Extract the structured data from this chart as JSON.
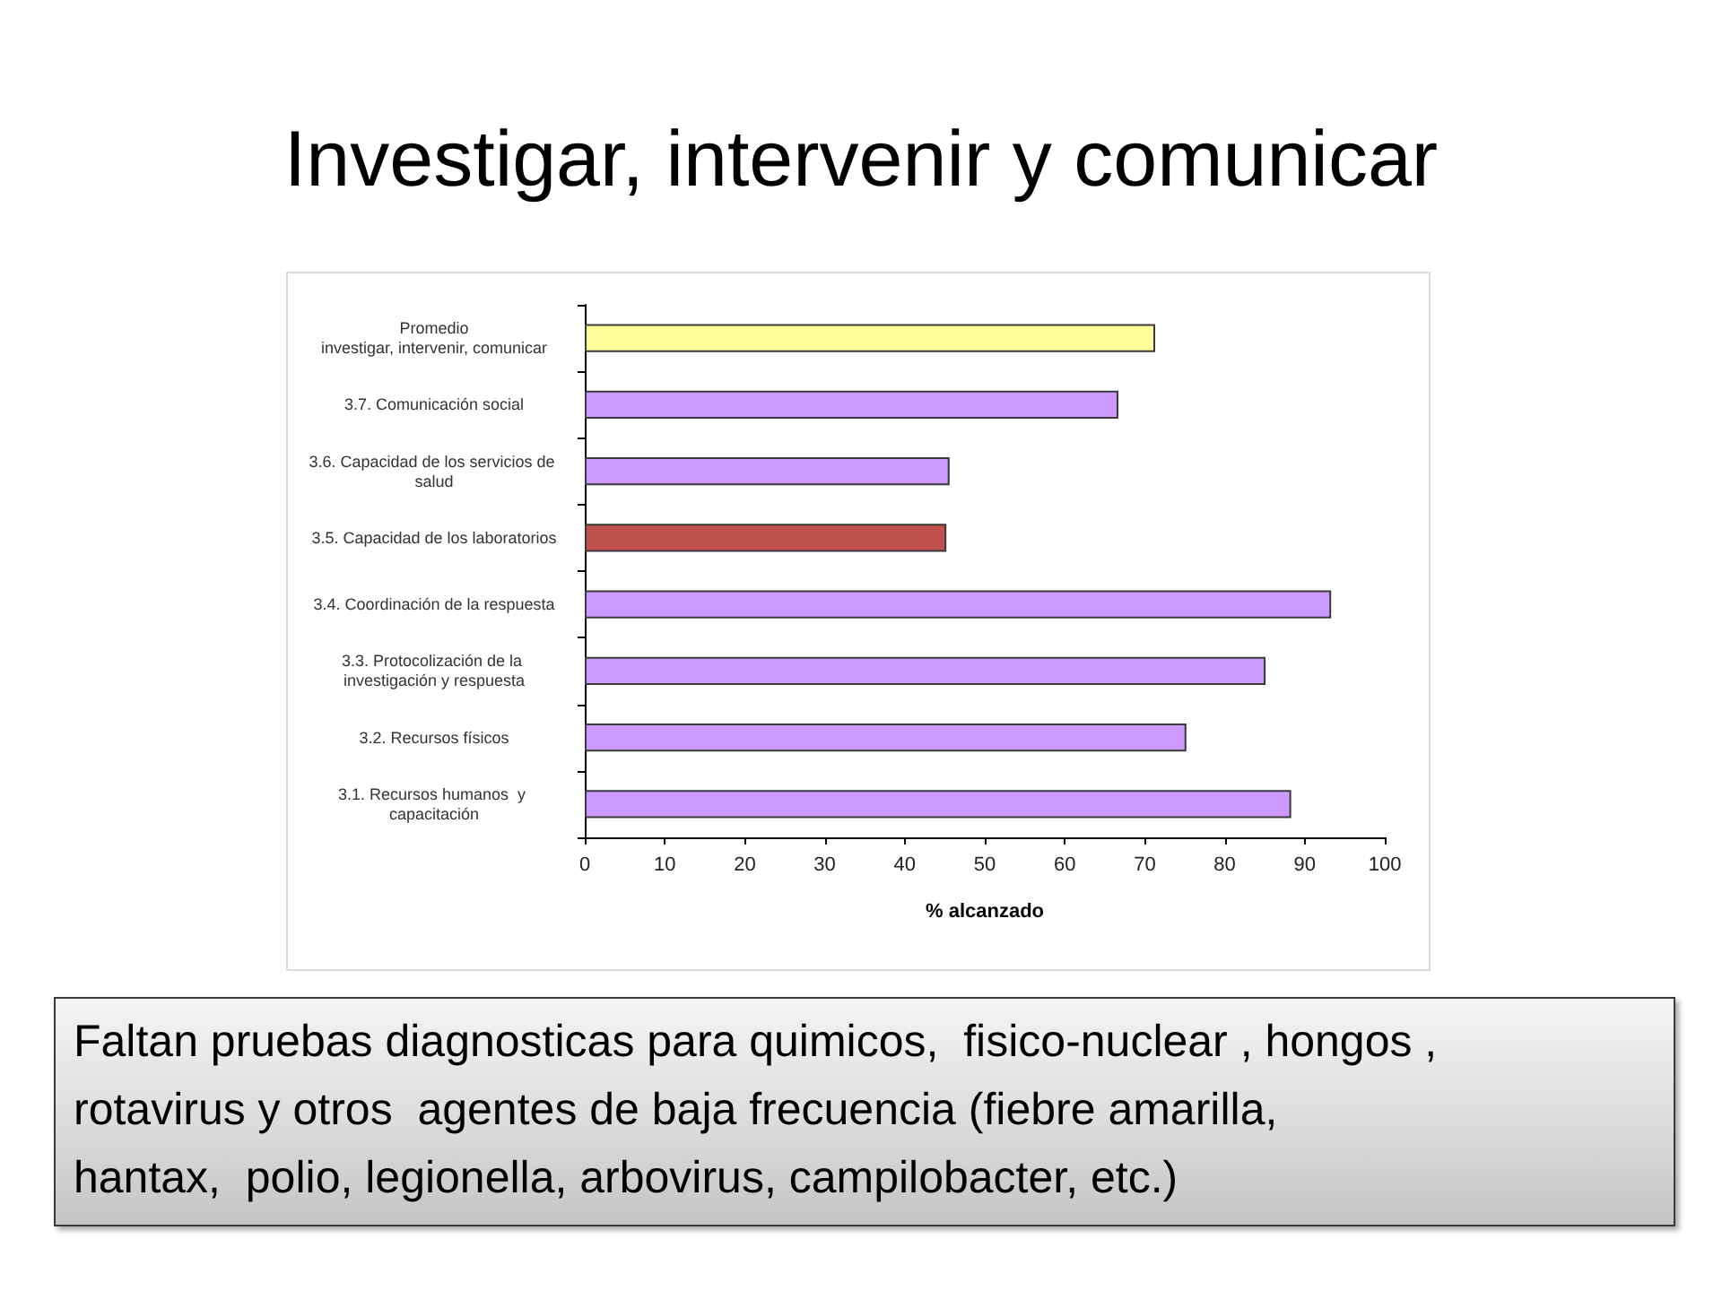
{
  "chart_data": {
    "type": "bar",
    "orientation": "horizontal",
    "title": "Investigar, intervenir y comunicar",
    "xlabel": "% alcanzado",
    "categories": [
      "Promedio\ninvestigar, intervenir, comunicar",
      "3.7. Comunicación social",
      "3.6. Capacidad de los servicios de salud",
      "3.5. Capacidad de los laboratorios",
      "3.4. Coordinación de la respuesta",
      "3.3. Protocolización de la investigación y respuesta",
      "3.2. Recursos físicos",
      "3.1. Recursos humanos  y capacitación"
    ],
    "values": [
      71.3,
      66.7,
      45.6,
      45.2,
      93.3,
      85.1,
      75.2,
      88.3
    ],
    "colors": [
      "#ffff99",
      "#cc99ff",
      "#cc99ff",
      "#c0504d",
      "#cc99ff",
      "#cc99ff",
      "#cc99ff",
      "#cc99ff"
    ],
    "xlim": [
      0,
      100
    ],
    "xticks": [
      0,
      10,
      20,
      30,
      40,
      50,
      60,
      70,
      80,
      90,
      100
    ],
    "annotations": [
      "Faltan pruebas diagnosticas para quimicos,  fisico-nuclear , hongos ,\nrotavirus y otros  agentes de baja frecuencia (fiebre amarilla,\nhantax,  polio, legionella, arbovirus, campilobacter, etc.)"
    ]
  }
}
